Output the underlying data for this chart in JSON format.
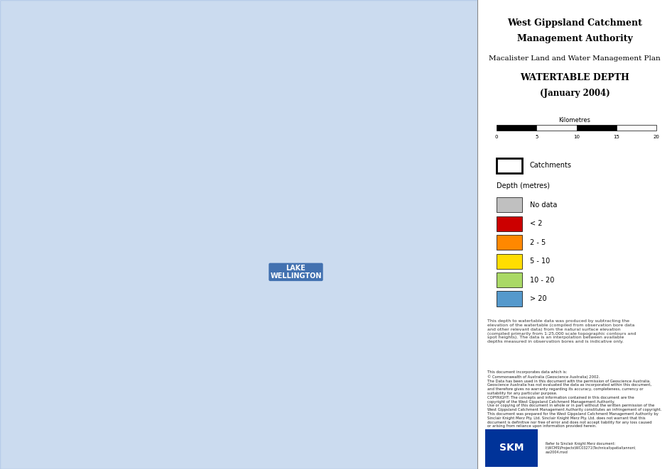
{
  "title_line1": "West Gippsland Catchment",
  "title_line2": "Management Authority",
  "subtitle1": "Macalister Land and Water Management Plan",
  "subtitle2": "WATERTABLE DEPTH",
  "subtitle3": "(January 2004)",
  "legend_title1": "Catchments",
  "legend_title2": "Depth (metres)",
  "legend_items": [
    {
      "label": "No data",
      "color": "#c0c0c0"
    },
    {
      "label": "< 2",
      "color": "#cc0000"
    },
    {
      "label": "2 - 5",
      "color": "#ff8800"
    },
    {
      "label": "5 - 10",
      "color": "#ffdd00"
    },
    {
      "label": "10 - 20",
      "color": "#aad966"
    },
    {
      "label": "> 20",
      "color": "#5599cc"
    }
  ],
  "scale_label": "Kilometres",
  "scale_ticks": [
    "0",
    "5",
    "10",
    "15",
    "20"
  ],
  "note_text": "This depth to watertable data was produced by subtracting the\nelevation of the watertable (compiled from observation bore data\nand other relevant data) from the natural surface elevation\n(compiled primarily from 1:25,000 scale topographic contours and\nspot heights). The data is an interpolation between available\ndepths measured in observation bores and is indicative only.",
  "copyright_text": "This document incorporates data which is:\n© Commonwealth of Australia (Geoscience Australia) 2002.\nThe Data has been used in this document with the permission of Geoscience Australia.\nGeoscience Australia has not evaluated the data as incorporated within this document,\nand therefore gives no warranty regarding its accuracy, completeness, currency or\nsuitability for any particular purpose.\nCOPYRIGHT: The concepts and information contained in this document are the\ncopyright of the West Gippsland Catchment Management Authority.\nUse or copying of this document in whole or in part without the written permission of the\nWest Gippsland Catchment Management Authority constitutes an infringement of copyright.\nThis document was prepared for the West Gippsland Catchment Management Authority by\nSinclair Knight Merz Pty. Ltd. Sinclair Knight Merz Pty. Ltd. does not warrant that this\ndocument is definitive nor free of error and does not accept liability for any loss caused\nor arising from reliance upon information provided herein.",
  "skm_text": "Refer to Sinclair Knight Merz document:\nI:\\WCMS\\Projects\\WC03271\\Technical\\spatial\\annon\\\naw2004.mxd",
  "map_bg_color": "#e8f0f8",
  "panel_bg_color": "#ffffff",
  "border_color": "#000000",
  "map_image_placeholder": true,
  "lake_wellington_color": "#3366aa",
  "lake_label": "LAKE\nWELLINGTON",
  "catchment_outline_color": "#000000",
  "river_color": "#5577cc",
  "no_data_color": "#c8c8c8",
  "depth_colors": {
    "lt2": "#cc1111",
    "2to5": "#ff8811",
    "5to10": "#ffdd00",
    "10to20": "#aadd66",
    "gt20": "#5588cc"
  }
}
